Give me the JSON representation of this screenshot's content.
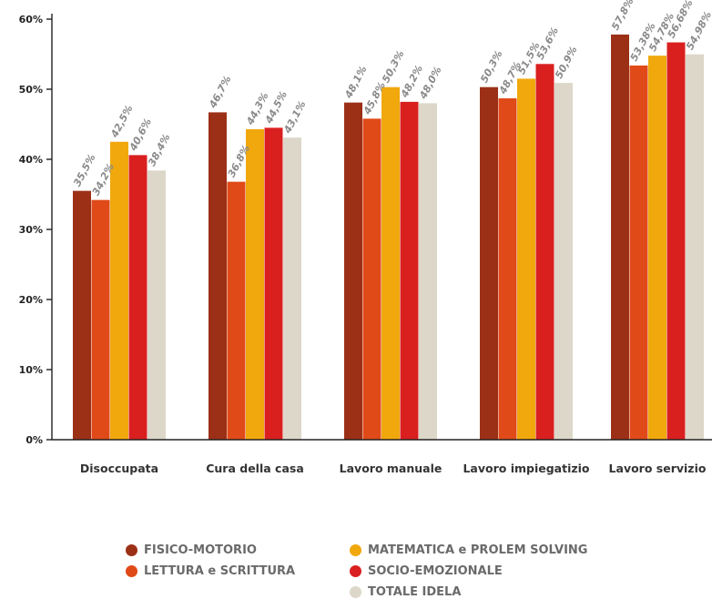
{
  "chart_data": {
    "type": "bar",
    "categories": [
      "Disoccupata",
      "Cura della casa",
      "Lavoro manuale",
      "Lavoro impiegatizio",
      "Lavoro servizio"
    ],
    "series": [
      {
        "name": "FISICO-MOTORIO",
        "color": "#9c3017",
        "values": [
          35.5,
          46.7,
          48.1,
          50.3,
          57.8
        ],
        "labels": [
          "35,5%",
          "46,7%",
          "48,1%",
          "50,3%",
          "57,8%"
        ]
      },
      {
        "name": "LETTURA e SCRITTURA",
        "color": "#e04a18",
        "values": [
          34.2,
          36.8,
          45.8,
          48.7,
          53.38
        ],
        "labels": [
          "34,2%",
          "36,8%",
          "45,8%",
          "48,7%",
          "53,38%"
        ]
      },
      {
        "name": "MATEMATICA e PROLEM SOLVING",
        "color": "#f0a80c",
        "values": [
          42.5,
          44.3,
          50.3,
          51.5,
          54.78
        ],
        "labels": [
          "42,5%",
          "44,3%",
          "50,3%",
          "51,5%",
          "54,78%"
        ]
      },
      {
        "name": "SOCIO-EMOZIONALE",
        "color": "#d9201f",
        "values": [
          40.6,
          44.5,
          48.2,
          53.6,
          56.68
        ],
        "labels": [
          "40,6%",
          "44,5%",
          "48,2%",
          "53,6%",
          "56,68%"
        ]
      },
      {
        "name": "TOTALE IDELA",
        "color": "#dcd7c9",
        "values": [
          38.4,
          43.1,
          48.0,
          50.9,
          54.98
        ],
        "labels": [
          "38,4%",
          "43,1%",
          "48,0%",
          "50,9%",
          "54,98%"
        ]
      }
    ],
    "yticks": [
      "0%",
      "10%",
      "20%",
      "30%",
      "40%",
      "50%",
      "60%"
    ],
    "ylim": [
      0,
      60
    ],
    "legend_position": "bottom"
  }
}
